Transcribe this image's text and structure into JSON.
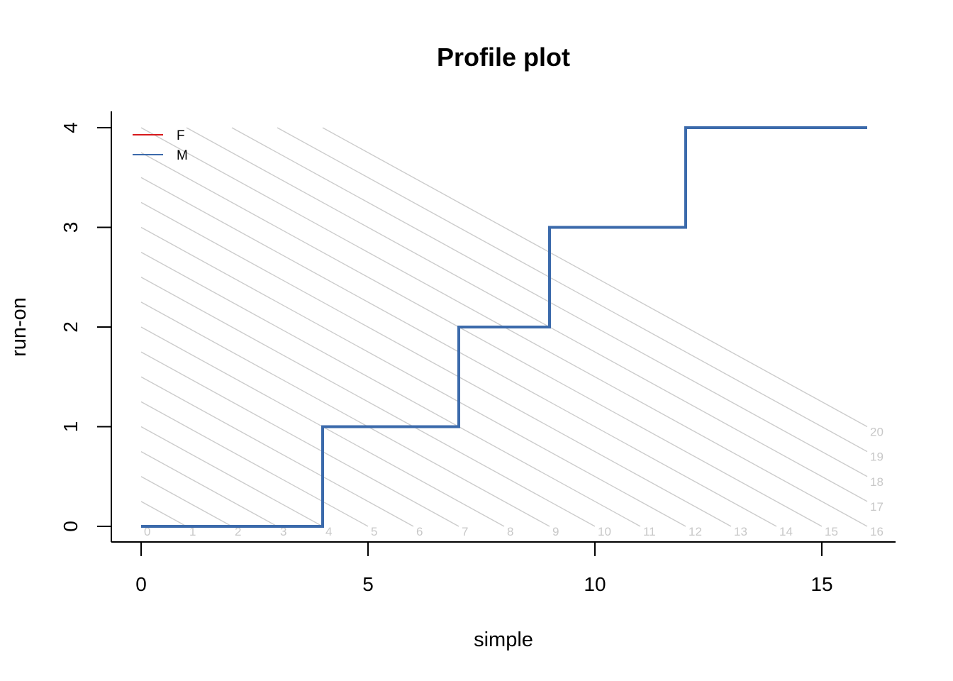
{
  "chart_data": {
    "type": "line",
    "title": "Profile plot",
    "xlabel": "simple",
    "ylabel": "run-on",
    "xlim": [
      0,
      16
    ],
    "ylim": [
      0,
      4
    ],
    "x_ticks": [
      0,
      5,
      10,
      15
    ],
    "y_ticks": [
      0,
      1,
      2,
      3,
      4
    ],
    "grid": false,
    "legend": {
      "placement": "top-left",
      "entries": [
        {
          "name": "F",
          "color": "#d7191c"
        },
        {
          "name": "M",
          "color": "#3b6aab"
        }
      ]
    },
    "reference_lines": {
      "color": "#cccccc",
      "description_totals": [
        0,
        1,
        2,
        3,
        4,
        5,
        6,
        7,
        8,
        9,
        10,
        11,
        12,
        13,
        14,
        15,
        16,
        17,
        18,
        19,
        20
      ]
    },
    "series": [
      {
        "name": "M",
        "color": "#3b6aab",
        "step": true,
        "x": [
          0,
          4,
          4,
          7,
          7,
          9,
          9,
          12,
          12,
          16
        ],
        "y": [
          0,
          0,
          1,
          1,
          2,
          2,
          3,
          3,
          4,
          4
        ]
      }
    ]
  }
}
